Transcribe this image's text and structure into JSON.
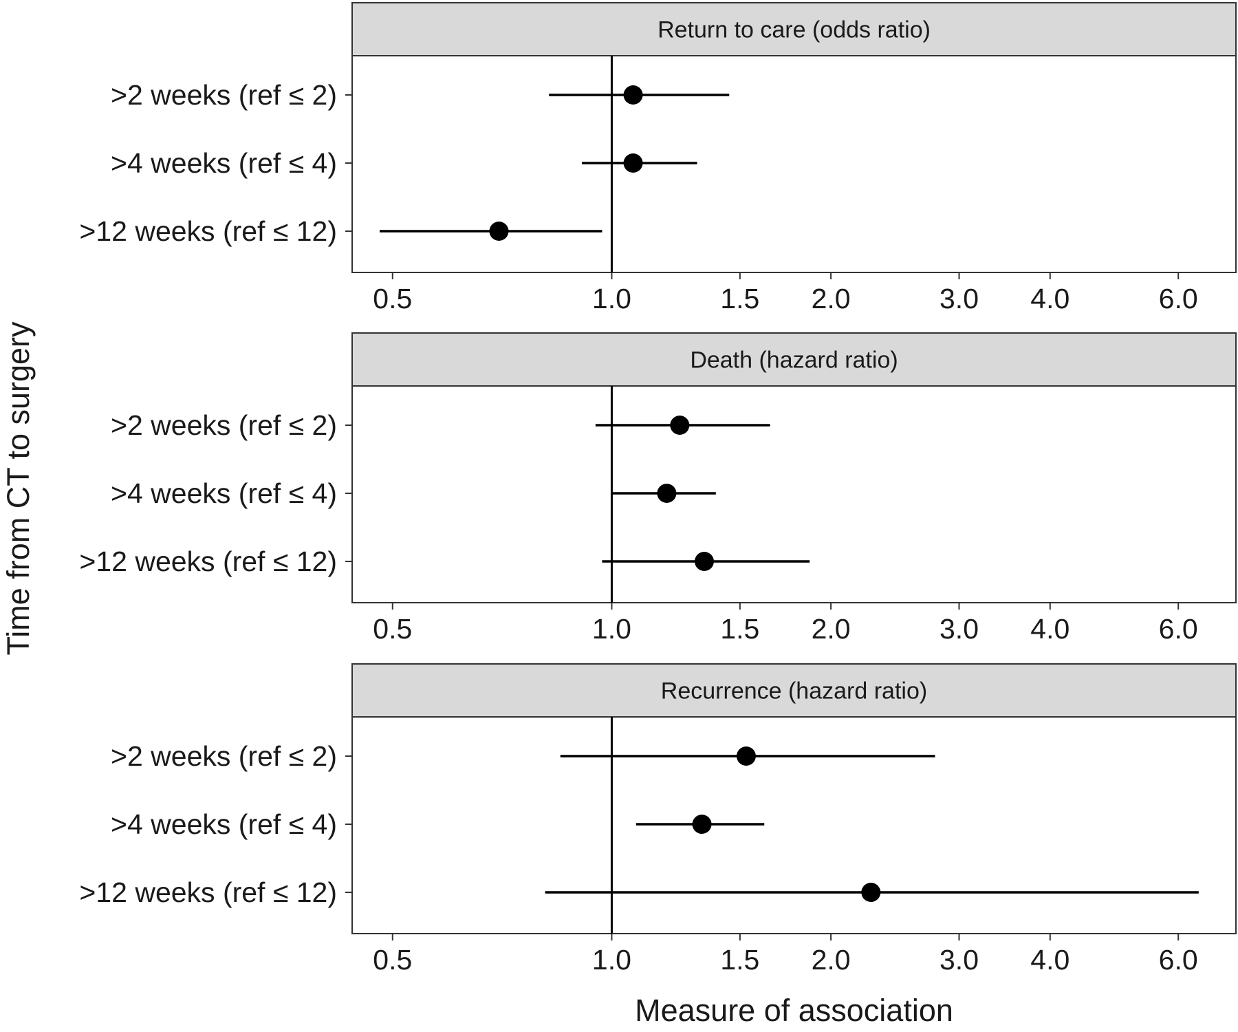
{
  "chart_data": {
    "type": "forest",
    "ylabel": "Time from CT to surgery",
    "xlabel": "Measure of association",
    "x_scale": "log",
    "xlim": [
      0.44,
      7.2
    ],
    "x_ticks": [
      0.5,
      1.0,
      1.5,
      2.0,
      3.0,
      4.0,
      6.0
    ],
    "x_tick_labels": [
      "0.5",
      "1.0",
      "1.5",
      "2.0",
      "3.0",
      "4.0",
      "6.0"
    ],
    "reference_line": 1.0,
    "grid": false,
    "rows": [
      ">2 weeks (ref ≤ 2)",
      ">4 weeks (ref ≤ 4)",
      ">12 weeks (ref ≤ 12)"
    ],
    "panels": [
      {
        "title": "Return to care (odds ratio)",
        "estimates": [
          {
            "row": ">2 weeks (ref ≤ 2)",
            "value": 1.07,
            "lower": 0.82,
            "upper": 1.45
          },
          {
            "row": ">4 weeks (ref ≤ 4)",
            "value": 1.07,
            "lower": 0.91,
            "upper": 1.31
          },
          {
            "row": ">12 weeks (ref ≤ 12)",
            "value": 0.7,
            "lower": 0.48,
            "upper": 0.97
          }
        ]
      },
      {
        "title": "Death (hazard ratio)",
        "estimates": [
          {
            "row": ">2 weeks (ref ≤ 2)",
            "value": 1.24,
            "lower": 0.95,
            "upper": 1.65
          },
          {
            "row": ">4 weeks (ref ≤ 4)",
            "value": 1.19,
            "lower": 1.0,
            "upper": 1.39
          },
          {
            "row": ">12 weeks (ref ≤ 12)",
            "value": 1.34,
            "lower": 0.97,
            "upper": 1.87
          }
        ]
      },
      {
        "title": "Recurrence (hazard ratio)",
        "estimates": [
          {
            "row": ">2 weeks (ref ≤ 2)",
            "value": 1.53,
            "lower": 0.85,
            "upper": 2.78
          },
          {
            "row": ">4 weeks (ref ≤ 4)",
            "value": 1.33,
            "lower": 1.08,
            "upper": 1.62
          },
          {
            "row": ">12 weeks (ref ≤ 12)",
            "value": 2.27,
            "lower": 0.81,
            "upper": 6.4
          }
        ]
      }
    ],
    "colors": {
      "strip_fill": "#d9d9d9",
      "panel_border": "#333333",
      "marks": "#000000",
      "text": "#1a1a1a"
    }
  }
}
